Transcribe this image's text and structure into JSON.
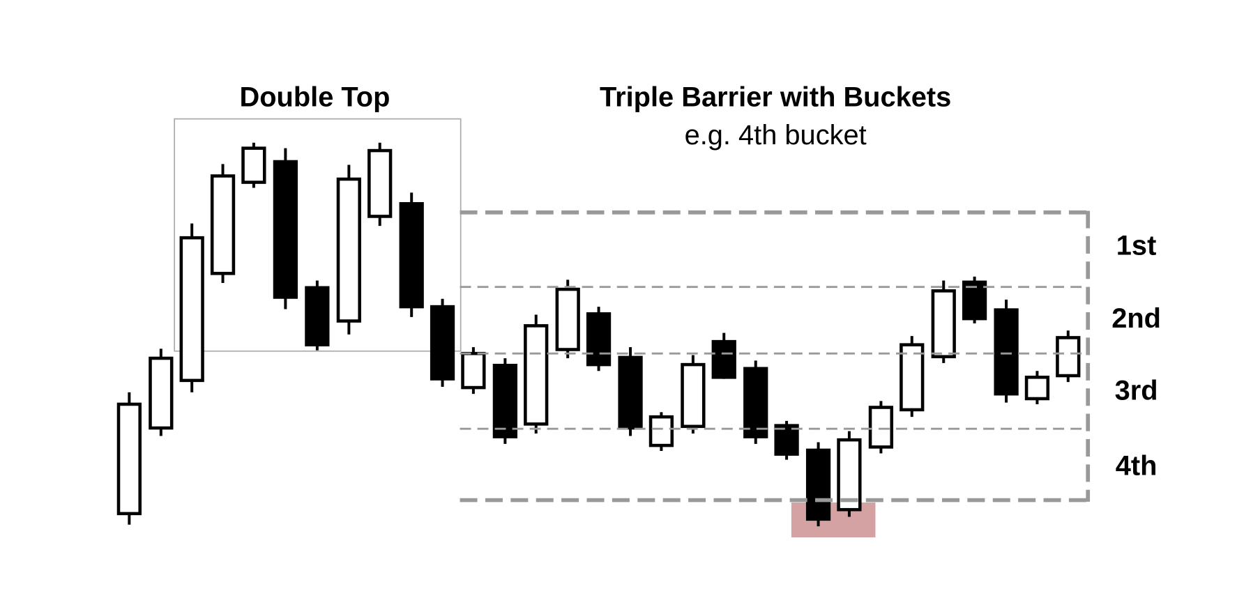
{
  "titles": {
    "double_top": "Double Top",
    "triple_barrier": "Triple Barrier with Buckets",
    "example": "e.g. 4th bucket"
  },
  "buckets": [
    "1st",
    "2nd",
    "3rd",
    "4th"
  ]
}
